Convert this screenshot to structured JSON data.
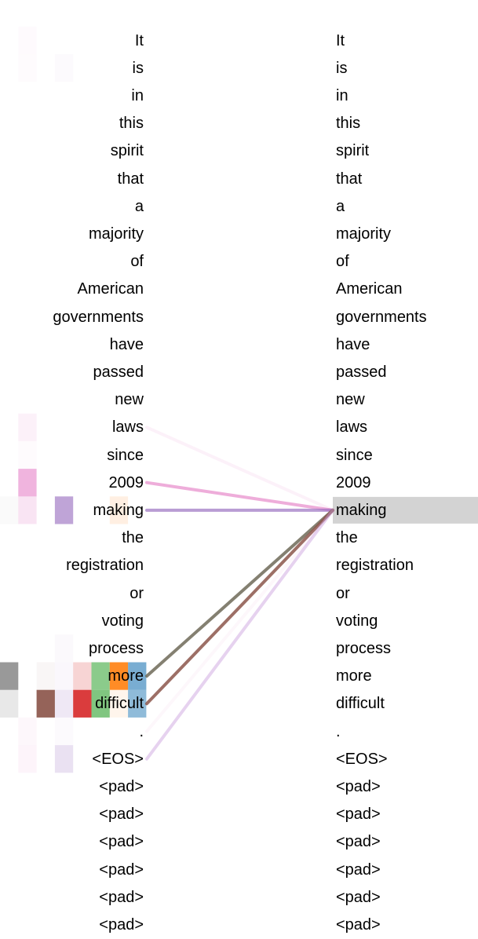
{
  "tokens": [
    "It",
    "is",
    "in",
    "this",
    "spirit",
    "that",
    "a",
    "majority",
    "of",
    "American",
    "governments",
    "have",
    "passed",
    "new",
    "laws",
    "since",
    "2009",
    "making",
    "the",
    "registration",
    "or",
    "voting",
    "process",
    "more",
    "difficult",
    ".",
    "<EOS>",
    "<pad>",
    "<pad>",
    "<pad>",
    "<pad>",
    "<pad>",
    "<pad>"
  ],
  "selected_token_index": 17,
  "selected_highlight_color": "#d3d3d3",
  "head_colors": [
    "#7f7f7f",
    "#e377c2",
    "#8c564b",
    "#9467bd",
    "#d62728",
    "#2ca02c",
    "#ff7f0e",
    "#1f77b4"
  ],
  "attention_cells": [
    {
      "token": 0,
      "head": 1,
      "weight": 0.04
    },
    {
      "token": 1,
      "head": 1,
      "weight": 0.03
    },
    {
      "token": 1,
      "head": 3,
      "weight": 0.03
    },
    {
      "token": 14,
      "head": 1,
      "weight": 0.1
    },
    {
      "token": 15,
      "head": 1,
      "weight": 0.03
    },
    {
      "token": 16,
      "head": 1,
      "weight": 0.55
    },
    {
      "token": 17,
      "head": 0,
      "weight": 0.04
    },
    {
      "token": 17,
      "head": 1,
      "weight": 0.2
    },
    {
      "token": 17,
      "head": 3,
      "weight": 0.6
    },
    {
      "token": 17,
      "head": 6,
      "weight": 0.12
    },
    {
      "token": 22,
      "head": 3,
      "weight": 0.04
    },
    {
      "token": 23,
      "head": 0,
      "weight": 0.8
    },
    {
      "token": 23,
      "head": 2,
      "weight": 0.05
    },
    {
      "token": 23,
      "head": 3,
      "weight": 0.05
    },
    {
      "token": 23,
      "head": 4,
      "weight": 0.2
    },
    {
      "token": 23,
      "head": 5,
      "weight": 0.55
    },
    {
      "token": 23,
      "head": 6,
      "weight": 0.9
    },
    {
      "token": 23,
      "head": 7,
      "weight": 0.6
    },
    {
      "token": 24,
      "head": 0,
      "weight": 0.18
    },
    {
      "token": 24,
      "head": 2,
      "weight": 0.92
    },
    {
      "token": 24,
      "head": 3,
      "weight": 0.15
    },
    {
      "token": 24,
      "head": 4,
      "weight": 0.9
    },
    {
      "token": 24,
      "head": 5,
      "weight": 0.6
    },
    {
      "token": 24,
      "head": 6,
      "weight": 0.08
    },
    {
      "token": 24,
      "head": 7,
      "weight": 0.5
    },
    {
      "token": 25,
      "head": 1,
      "weight": 0.06
    },
    {
      "token": 25,
      "head": 3,
      "weight": 0.03
    },
    {
      "token": 26,
      "head": 1,
      "weight": 0.08
    },
    {
      "token": 26,
      "head": 3,
      "weight": 0.2
    }
  ],
  "attention_lines": [
    {
      "source": 14,
      "color": "#e377c2",
      "weight": 0.1
    },
    {
      "source": 16,
      "color": "#e377c2",
      "weight": 0.6
    },
    {
      "source": 17,
      "color": "#9467bd",
      "weight": 0.65
    },
    {
      "source": 23,
      "color": "#6f6a58",
      "weight": 0.85
    },
    {
      "source": 24,
      "color": "#8c564b",
      "weight": 0.85
    },
    {
      "source": 25,
      "color": "#e377c2",
      "weight": 0.06
    },
    {
      "source": 26,
      "color": "#c79bdb",
      "weight": 0.45
    }
  ]
}
